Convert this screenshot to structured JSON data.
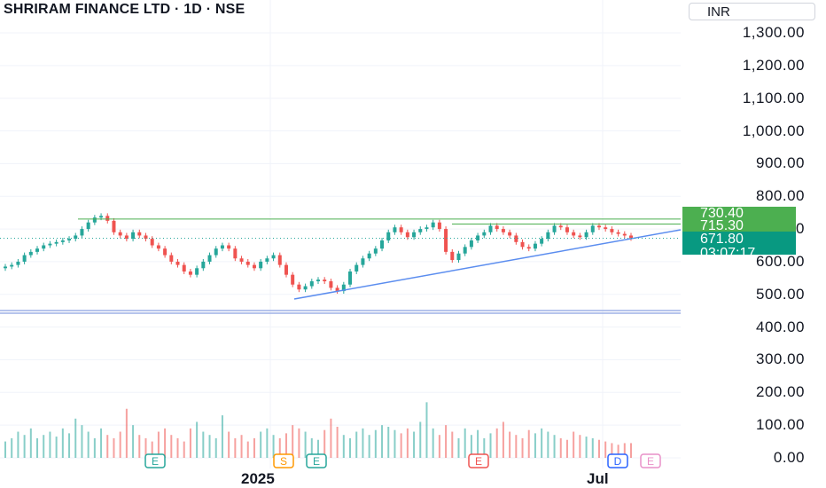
{
  "header": {
    "title": "SHRIRAM FINANCE LTD · 1D · NSE",
    "currency": "INR"
  },
  "colors": {
    "up": "#26a69a",
    "down": "#ef5350",
    "level_line": "#4caf50",
    "trend_line": "#5b8def",
    "current_price_bg": "#089981",
    "level_label_bg": "#4caf50",
    "grid": "#f0f3fa"
  },
  "price_labels": {
    "level_high": "730.40",
    "level_mid": "715.30",
    "current_price": "671.80",
    "countdown": "03:07:17"
  },
  "chart_data": {
    "type": "candlestick",
    "title": "SHRIRAM FINANCE LTD · 1D · NSE",
    "y_axis": {
      "ticks": [
        "1,300.00",
        "1,200.00",
        "1,100.00",
        "1,000.00",
        "900.00",
        "800.00",
        "700.00",
        "600.00",
        "500.00",
        "400.00",
        "300.00",
        "200.00",
        "100.00",
        "0.00"
      ],
      "ylim": [
        0,
        1300
      ]
    },
    "x_axis": {
      "ticks": [
        "2025",
        "Jul"
      ]
    },
    "annotations": {
      "horizontal_levels": [
        730.4,
        715.3
      ],
      "rising_support_trendline": true,
      "event_markers": [
        "E",
        "S",
        "E",
        "E",
        "D",
        "E"
      ]
    },
    "close_series_approx": [
      585,
      590,
      600,
      620,
      630,
      640,
      650,
      655,
      660,
      665,
      670,
      680,
      700,
      720,
      735,
      740,
      725,
      690,
      680,
      670,
      690,
      680,
      670,
      650,
      640,
      620,
      600,
      590,
      570,
      560,
      580,
      600,
      620,
      640,
      650,
      640,
      610,
      600,
      590,
      580,
      600,
      610,
      620,
      590,
      560,
      530,
      515,
      525,
      540,
      545,
      540,
      520,
      510,
      530,
      570,
      590,
      610,
      625,
      640,
      665,
      690,
      705,
      690,
      675,
      690,
      700,
      705,
      720,
      700,
      630,
      605,
      625,
      645,
      665,
      680,
      690,
      710,
      700,
      690,
      680,
      660,
      645,
      640,
      655,
      670,
      690,
      710,
      705,
      690,
      680,
      675,
      690,
      710,
      705,
      700,
      690,
      685,
      680,
      672
    ],
    "volume_series_approx": [
      50,
      60,
      80,
      70,
      90,
      60,
      70,
      80,
      65,
      90,
      75,
      120,
      100,
      80,
      60,
      90,
      70,
      60,
      80,
      150,
      100,
      70,
      60,
      50,
      80,
      90,
      70,
      60,
      50,
      90,
      110,
      80,
      70,
      60,
      130,
      80,
      60,
      70,
      50,
      60,
      80,
      90,
      70,
      60,
      75,
      100,
      90,
      80,
      60,
      55,
      85,
      120,
      95,
      70,
      60,
      80,
      90,
      70,
      85,
      100,
      95,
      85,
      75,
      90,
      80,
      110,
      170,
      90,
      70,
      100,
      80,
      60,
      90,
      70,
      85,
      60,
      75,
      90,
      110,
      80,
      70,
      60,
      85,
      75,
      90,
      80,
      70,
      60,
      55,
      80,
      70,
      65,
      60,
      55,
      50,
      45,
      40,
      45,
      45
    ]
  }
}
